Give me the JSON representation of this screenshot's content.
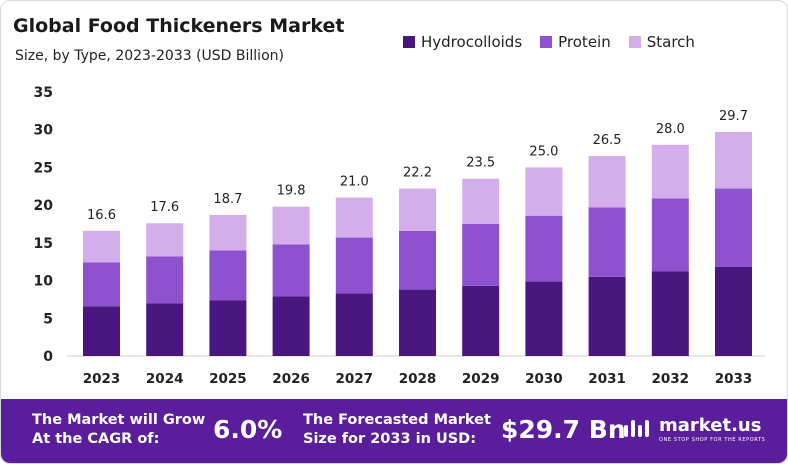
{
  "header": {
    "title": "Global Food Thickeners Market",
    "subtitle": "Size, by Type, 2023-2033 (USD Billion)"
  },
  "colors": {
    "hydrocolloids": "#4a1680",
    "protein": "#8e52cf",
    "starch": "#d3aeeb",
    "footer": "#5a1e9c"
  },
  "chart_data": {
    "type": "bar",
    "stacked": true,
    "categories": [
      "2023",
      "2024",
      "2025",
      "2026",
      "2027",
      "2028",
      "2029",
      "2030",
      "2031",
      "2032",
      "2033"
    ],
    "series": [
      {
        "name": "Hydrocolloids",
        "values": [
          6.6,
          7.0,
          7.4,
          7.9,
          8.3,
          8.8,
          9.3,
          9.9,
          10.5,
          11.2,
          11.8
        ]
      },
      {
        "name": "Protein",
        "values": [
          5.8,
          6.2,
          6.6,
          6.9,
          7.4,
          7.8,
          8.2,
          8.7,
          9.2,
          9.7,
          10.4
        ]
      },
      {
        "name": "Starch",
        "values": [
          4.2,
          4.4,
          4.7,
          5.0,
          5.3,
          5.6,
          6.0,
          6.4,
          6.8,
          7.1,
          7.5
        ]
      }
    ],
    "totals": [
      "16.6",
      "17.6",
      "18.7",
      "19.8",
      "21.0",
      "22.2",
      "23.5",
      "25.0",
      "26.5",
      "28.0",
      "29.7"
    ],
    "yticks": [
      "0",
      "5",
      "10",
      "15",
      "20",
      "25",
      "30",
      "35"
    ],
    "ylim": [
      0,
      35
    ],
    "legend_position": "top-right",
    "grid": false
  },
  "footer": {
    "cagr_label_line1": "The Market will Grow",
    "cagr_label_line2": "At the CAGR of:",
    "cagr_value": "6.0%",
    "forecast_label_line1": "The Forecasted Market",
    "forecast_label_line2": "Size for 2033 in USD:",
    "forecast_value": "$29.7 Bn",
    "brand_name": "market.us",
    "brand_tagline": "ONE STOP SHOP FOR THE REPORTS"
  }
}
